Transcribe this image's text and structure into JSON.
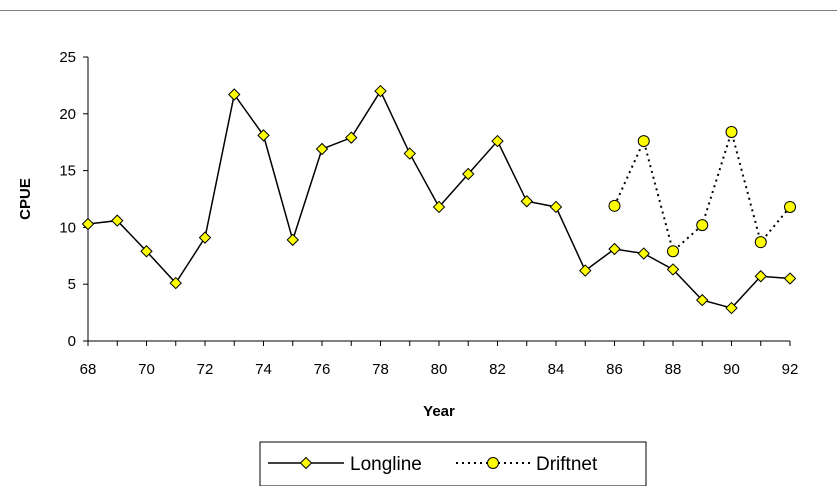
{
  "chart_data": {
    "type": "line",
    "xlabel": "Year",
    "ylabel": "CPUE",
    "xlim": [
      68,
      92
    ],
    "ylim": [
      0,
      25
    ],
    "x_ticks": [
      "68",
      "70",
      "72",
      "74",
      "76",
      "78",
      "80",
      "82",
      "84",
      "86",
      "88",
      "90",
      "92"
    ],
    "y_ticks": [
      "0",
      "5",
      "10",
      "15",
      "20",
      "25"
    ],
    "grid": false,
    "legend_position": "bottom",
    "series": [
      {
        "name": "Longline",
        "color": "#000000",
        "marker": "diamond",
        "marker_color": "#ffff00",
        "line_style": "solid",
        "x": [
          68,
          69,
          70,
          71,
          72,
          73,
          74,
          75,
          76,
          77,
          78,
          79,
          80,
          81,
          82,
          83,
          84,
          85,
          86,
          87,
          88,
          89,
          90,
          91,
          92
        ],
        "values": [
          10.3,
          10.6,
          7.9,
          5.1,
          9.1,
          21.7,
          18.1,
          8.9,
          16.9,
          17.9,
          22.0,
          16.5,
          11.8,
          14.7,
          17.6,
          12.3,
          11.8,
          6.2,
          8.1,
          7.7,
          6.3,
          3.6,
          2.9,
          5.7,
          5.5
        ]
      },
      {
        "name": "Driftnet",
        "color": "#000000",
        "marker": "circle",
        "marker_color": "#ffff00",
        "line_style": "dotted",
        "x": [
          86,
          87,
          88,
          89,
          90,
          91,
          92
        ],
        "values": [
          11.9,
          17.6,
          7.9,
          10.2,
          18.4,
          8.7,
          11.8
        ]
      }
    ]
  }
}
